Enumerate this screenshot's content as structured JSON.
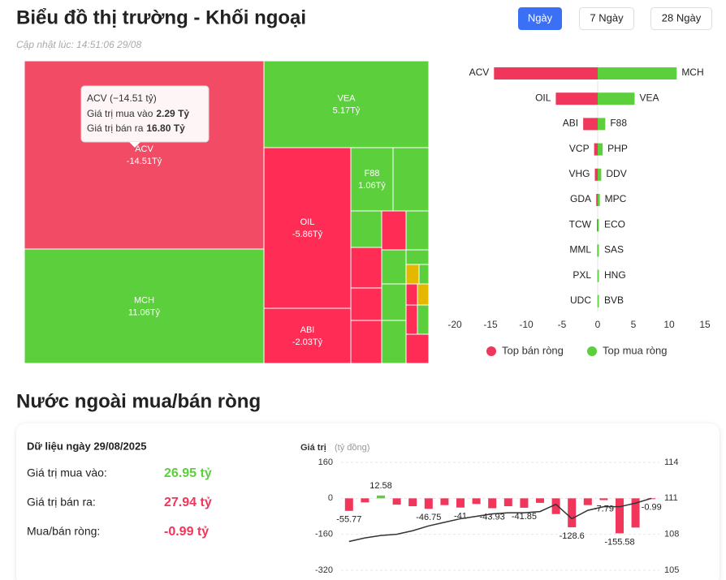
{
  "header": {
    "title": "Biểu đồ thị trường - Khối ngoại",
    "updated": "Cập nhật lúc: 14:51:06 29/08"
  },
  "buttons": [
    "Ngày",
    "7 Ngày",
    "28 Ngày"
  ],
  "section_title": "Nước ngoài mua/bán ròng",
  "summary": {
    "heading": "Dữ liệu ngày 29/08/2025",
    "rows": [
      [
        "Giá trị mua vào:",
        "26.95 tỷ"
      ],
      [
        "Giá trị bán ra:",
        "27.94 tỷ"
      ],
      [
        "Mua/bán ròng:",
        "-0.99 tỷ"
      ]
    ]
  },
  "chart_data": [
    {
      "type": "treemap",
      "categories": [
        "ACV",
        "MCH",
        "VEA",
        "OIL",
        "ABI",
        "F88"
      ],
      "values": [
        -14.51,
        11.06,
        5.17,
        -5.86,
        -2.03,
        1.06
      ],
      "value_labels": [
        "-14.51Tỷ",
        "11.06Tỷ",
        "5.17Tỷ",
        "-5.86Tỷ",
        "-2.03Tỷ",
        "1.06Tỷ"
      ],
      "colors": [
        "#f24b66",
        "#5ccf3d",
        "#5ccf3d",
        "#ff2d55",
        "#ff2d55",
        "#5ccf3d"
      ],
      "tooltip": {
        "title": "ACV (−14.51 tỷ)",
        "lines": [
          [
            "Giá trị mua vào",
            "2.29 Tỷ"
          ],
          [
            "Giá trị bán ra",
            "16.80 Tỷ"
          ]
        ]
      }
    },
    {
      "type": "diverging-bar",
      "xlim": [
        -20,
        15
      ],
      "xticks": [
        -20,
        -15,
        -10,
        -5,
        0,
        5,
        10,
        15
      ],
      "legend": "bottom",
      "series": [
        {
          "name": "Top bán ròng",
          "color": "#f0365a",
          "categories": [
            "ACV",
            "OIL",
            "ABI",
            "VCP",
            "VHG",
            "GDA",
            "TCW",
            "MML",
            "PXL",
            "UDC"
          ],
          "values": [
            -14.51,
            -5.86,
            -2.03,
            -0.5,
            -0.4,
            -0.2,
            -0.1,
            -0.05,
            -0.03,
            -0.02
          ]
        },
        {
          "name": "Top mua ròng",
          "color": "#5ccf3d",
          "categories": [
            "MCH",
            "VEA",
            "F88",
            "PHP",
            "DDV",
            "MPC",
            "ECO",
            "SAS",
            "HNG",
            "BVB"
          ],
          "values": [
            11.06,
            5.17,
            1.06,
            0.7,
            0.5,
            0.3,
            0.15,
            0.05,
            0.03,
            0.02
          ]
        }
      ]
    },
    {
      "type": "bar-line",
      "y_label": "Giá trị",
      "y_unit": "(tỷ đồng)",
      "grid": true,
      "categories": [
        null,
        null,
        null,
        null,
        null,
        null,
        null,
        null,
        null,
        null,
        null,
        null,
        null,
        null,
        null,
        null,
        null,
        null,
        null,
        null
      ],
      "ylim": [
        -320,
        160
      ],
      "yticks": [
        -320,
        -160,
        0,
        160
      ],
      "y2lim": [
        105,
        114
      ],
      "y2ticks": [
        105,
        108,
        111,
        114
      ],
      "series": [
        {
          "color": "#f0365a",
          "positive_color": "#5ccf3d",
          "values": [
            -55.77,
            -18,
            12.58,
            -28,
            -35,
            -46.75,
            -30,
            -41,
            -25,
            -43.93,
            -35,
            -41.85,
            -20,
            -70,
            -128.6,
            -30,
            -7.79,
            -155.58,
            -130,
            -0.99
          ],
          "value_labels": [
            "-55.77",
            null,
            "12.58",
            null,
            null,
            "-46.75",
            null,
            "-41",
            null,
            "-43.93",
            null,
            "-41.85",
            null,
            null,
            "-128.6",
            null,
            "-7.79",
            "-155.58",
            null,
            "-0.99"
          ]
        },
        {
          "axis": "y2",
          "color": "#333333",
          "values": [
            107.4,
            107.7,
            107.9,
            108.0,
            108.3,
            108.7,
            109.0,
            109.3,
            109.5,
            109.7,
            109.8,
            109.8,
            109.9,
            110.5,
            109.3,
            110.0,
            110.3,
            110.3,
            110.6,
            111.0
          ]
        }
      ]
    }
  ]
}
